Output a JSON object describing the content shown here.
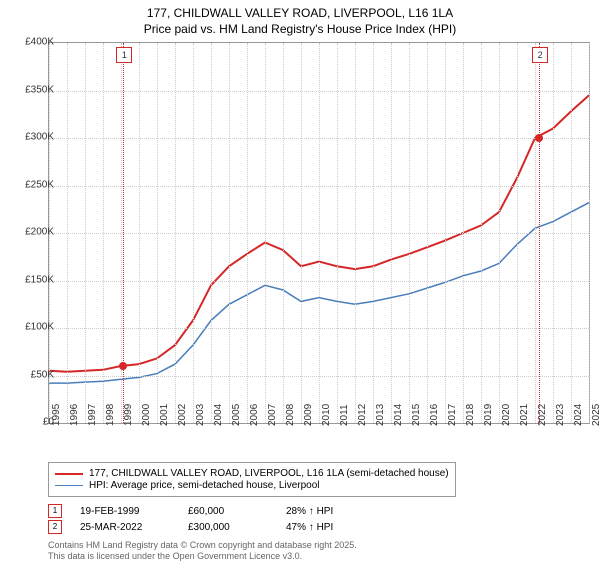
{
  "title_line1": "177, CHILDWALL VALLEY ROAD, LIVERPOOL, L16 1LA",
  "title_line2": "Price paid vs. HM Land Registry's House Price Index (HPI)",
  "chart": {
    "type": "line",
    "x_years": [
      1995,
      1996,
      1997,
      1998,
      1999,
      2000,
      2001,
      2002,
      2003,
      2004,
      2005,
      2006,
      2007,
      2008,
      2009,
      2010,
      2011,
      2012,
      2013,
      2014,
      2015,
      2016,
      2017,
      2018,
      2019,
      2020,
      2021,
      2022,
      2023,
      2024,
      2025
    ],
    "ylim": [
      0,
      400000
    ],
    "ytick_step": 50000,
    "ytick_labels": [
      "£0",
      "£50K",
      "£100K",
      "£150K",
      "£200K",
      "£250K",
      "£300K",
      "£350K",
      "£400K"
    ],
    "background_color": "#ffffff",
    "grid_color": "#cccccc",
    "border_color": "#999999",
    "series": [
      {
        "name": "177, CHILDWALL VALLEY ROAD, LIVERPOOL, L16 1LA (semi-detached house)",
        "color": "#d62728",
        "line_width": 2,
        "data": [
          [
            1995,
            55000
          ],
          [
            1996,
            54000
          ],
          [
            1997,
            55000
          ],
          [
            1998,
            56000
          ],
          [
            1999,
            60000
          ],
          [
            2000,
            62000
          ],
          [
            2001,
            68000
          ],
          [
            2002,
            82000
          ],
          [
            2003,
            108000
          ],
          [
            2004,
            145000
          ],
          [
            2005,
            165000
          ],
          [
            2006,
            178000
          ],
          [
            2007,
            190000
          ],
          [
            2008,
            182000
          ],
          [
            2009,
            165000
          ],
          [
            2010,
            170000
          ],
          [
            2011,
            165000
          ],
          [
            2012,
            162000
          ],
          [
            2013,
            165000
          ],
          [
            2014,
            172000
          ],
          [
            2015,
            178000
          ],
          [
            2016,
            185000
          ],
          [
            2017,
            192000
          ],
          [
            2018,
            200000
          ],
          [
            2019,
            208000
          ],
          [
            2020,
            222000
          ],
          [
            2021,
            258000
          ],
          [
            2022,
            300000
          ],
          [
            2023,
            310000
          ],
          [
            2024,
            328000
          ],
          [
            2025,
            345000
          ]
        ]
      },
      {
        "name": "HPI: Average price, semi-detached house, Liverpool",
        "color": "#4a7ebb",
        "line_width": 1.5,
        "data": [
          [
            1995,
            42000
          ],
          [
            1996,
            42000
          ],
          [
            1997,
            43000
          ],
          [
            1998,
            44000
          ],
          [
            1999,
            46000
          ],
          [
            2000,
            48000
          ],
          [
            2001,
            52000
          ],
          [
            2002,
            62000
          ],
          [
            2003,
            82000
          ],
          [
            2004,
            108000
          ],
          [
            2005,
            125000
          ],
          [
            2006,
            135000
          ],
          [
            2007,
            145000
          ],
          [
            2008,
            140000
          ],
          [
            2009,
            128000
          ],
          [
            2010,
            132000
          ],
          [
            2011,
            128000
          ],
          [
            2012,
            125000
          ],
          [
            2013,
            128000
          ],
          [
            2014,
            132000
          ],
          [
            2015,
            136000
          ],
          [
            2016,
            142000
          ],
          [
            2017,
            148000
          ],
          [
            2018,
            155000
          ],
          [
            2019,
            160000
          ],
          [
            2020,
            168000
          ],
          [
            2021,
            188000
          ],
          [
            2022,
            205000
          ],
          [
            2023,
            212000
          ],
          [
            2024,
            222000
          ],
          [
            2025,
            232000
          ]
        ]
      }
    ],
    "sales": [
      {
        "n": "1",
        "year": 1999.13,
        "price": 60000,
        "date": "19-FEB-1999",
        "price_label": "£60,000",
        "hpi_diff": "28% ↑ HPI"
      },
      {
        "n": "2",
        "year": 2022.23,
        "price": 300000,
        "date": "25-MAR-2022",
        "price_label": "£300,000",
        "hpi_diff": "47% ↑ HPI"
      }
    ]
  },
  "footnote_line1": "Contains HM Land Registry data © Crown copyright and database right 2025.",
  "footnote_line2": "This data is licensed under the Open Government Licence v3.0."
}
